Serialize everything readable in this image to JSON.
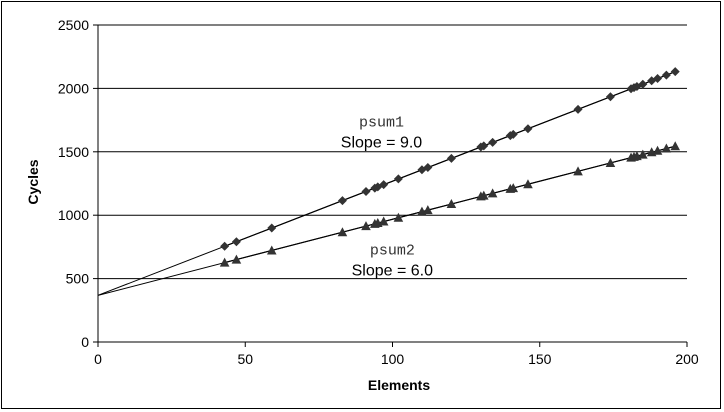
{
  "chart_data": {
    "type": "scatter",
    "title": "",
    "xlabel": "Elements",
    "ylabel": "Cycles",
    "xlim": [
      0,
      200
    ],
    "ylim": [
      0,
      2500
    ],
    "xticks": [
      0,
      50,
      100,
      150,
      200
    ],
    "yticks": [
      0,
      500,
      1000,
      1500,
      2000,
      2500
    ],
    "grid": "horizontal",
    "series": [
      {
        "marker": "diamond",
        "fit": {
          "intercept": 368,
          "slope": 9.0
        },
        "x": [
          43,
          47,
          59,
          83,
          91,
          94,
          95,
          97,
          102,
          110,
          112,
          120,
          130,
          131,
          134,
          140,
          141,
          146,
          163,
          174,
          181,
          182,
          183,
          185,
          188,
          190,
          193,
          196
        ],
        "y": [
          755,
          791,
          899,
          1115,
          1187,
          1214,
          1223,
          1241,
          1286,
          1358,
          1376,
          1448,
          1538,
          1547,
          1574,
          1628,
          1637,
          1682,
          1835,
          1934,
          1997,
          2006,
          2015,
          2033,
          2060,
          2078,
          2105,
          2132
        ]
      },
      {
        "marker": "triangle",
        "fit": {
          "intercept": 368,
          "slope": 6.0
        },
        "x": [
          43,
          47,
          59,
          83,
          91,
          94,
          95,
          97,
          102,
          110,
          112,
          120,
          130,
          131,
          134,
          140,
          141,
          146,
          163,
          174,
          181,
          182,
          183,
          185,
          188,
          190,
          193,
          196
        ],
        "y": [
          626,
          650,
          722,
          866,
          914,
          932,
          938,
          950,
          980,
          1028,
          1040,
          1088,
          1148,
          1154,
          1172,
          1208,
          1214,
          1244,
          1346,
          1412,
          1454,
          1460,
          1466,
          1478,
          1496,
          1508,
          1526,
          1544
        ]
      }
    ],
    "annotations": [
      {
        "name": "psum1",
        "slope_text": "Slope = 9.0",
        "at": [
          100,
          1550
        ]
      },
      {
        "name": "psum2",
        "slope_text": "Slope = 6.0",
        "at": [
          103,
          550
        ]
      }
    ]
  }
}
